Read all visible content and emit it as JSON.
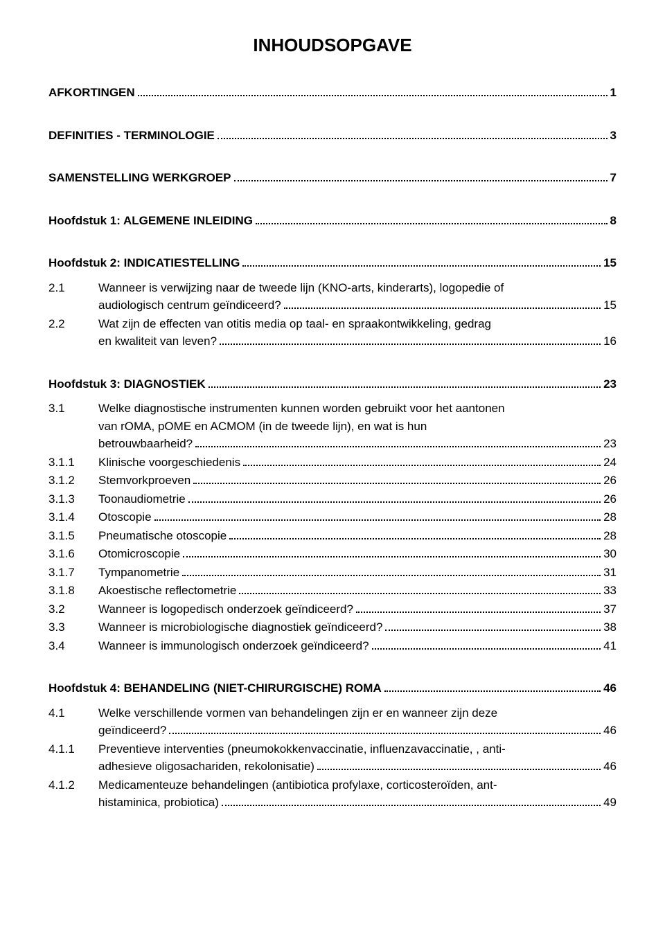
{
  "title": "INHOUDSOPGAVE",
  "colors": {
    "text": "#000000",
    "background": "#ffffff"
  },
  "typography": {
    "font_family": "Arial",
    "title_fontsize": 26,
    "body_fontsize": 17,
    "bold_weight": 700
  },
  "entries": [
    {
      "num": "",
      "label": "AFKORTINGEN",
      "page": "1",
      "bold": true,
      "wrap": false,
      "gap_after": "lg"
    },
    {
      "num": "",
      "label": "DEFINITIES - TERMINOLOGIE",
      "page": "3",
      "bold": true,
      "wrap": false,
      "gap_after": "lg"
    },
    {
      "num": "",
      "label": "SAMENSTELLING WERKGROEP",
      "page": "7",
      "bold": true,
      "wrap": false,
      "gap_after": "lg"
    },
    {
      "num": "",
      "label": "Hoofdstuk 1: ALGEMENE INLEIDING",
      "page": "8",
      "bold": true,
      "wrap": false,
      "gap_after": "lg"
    },
    {
      "num": "",
      "label": "Hoofdstuk 2: INDICATIESTELLING",
      "page": "15",
      "bold": true,
      "wrap": false,
      "gap_after": "sm"
    },
    {
      "num": "2.1",
      "label_lines": [
        "Wanneer is verwijzing naar de tweede lijn (KNO-arts, kinderarts), logopedie of",
        "audiologisch centrum geïndiceerd?"
      ],
      "page": "15",
      "bold": false,
      "gap_after": ""
    },
    {
      "num": "2.2",
      "label_lines": [
        "Wat zijn de effecten van otitis media op taal- en spraakontwikkeling, gedrag",
        "en kwaliteit van leven?"
      ],
      "page": "16",
      "bold": false,
      "gap_after": "lg"
    },
    {
      "num": "",
      "label": "Hoofdstuk 3: DIAGNOSTIEK",
      "page": "23",
      "bold": true,
      "wrap": false,
      "gap_after": "sm"
    },
    {
      "num": "3.1",
      "label_lines": [
        "Welke diagnostische instrumenten kunnen worden gebruikt voor het aantonen",
        "van rOMA, pOME en ACMOM (in de tweede lijn), en wat is hun",
        "betrouwbaarheid?"
      ],
      "page": "23",
      "bold": false,
      "gap_after": ""
    },
    {
      "num": "3.1.1",
      "label": "Klinische voorgeschiedenis",
      "page": "24",
      "bold": false,
      "wrap": false,
      "gap_after": ""
    },
    {
      "num": "3.1.2",
      "label": "Stemvorkproeven",
      "page": "26",
      "bold": false,
      "wrap": false,
      "gap_after": ""
    },
    {
      "num": "3.1.3",
      "label": "Toonaudiometrie",
      "page": "26",
      "bold": false,
      "wrap": false,
      "gap_after": ""
    },
    {
      "num": "3.1.4",
      "label": "Otoscopie",
      "page": "28",
      "bold": false,
      "wrap": false,
      "gap_after": ""
    },
    {
      "num": "3.1.5",
      "label": "Pneumatische otoscopie",
      "page": "28",
      "bold": false,
      "wrap": false,
      "gap_after": ""
    },
    {
      "num": "3.1.6",
      "label": "Otomicroscopie",
      "page": "30",
      "bold": false,
      "wrap": false,
      "gap_after": ""
    },
    {
      "num": "3.1.7",
      "label": "Tympanometrie",
      "page": "31",
      "bold": false,
      "wrap": false,
      "gap_after": ""
    },
    {
      "num": "3.1.8",
      "label": "Akoestische reflectometrie",
      "page": "33",
      "bold": false,
      "wrap": false,
      "gap_after": ""
    },
    {
      "num": "3.2",
      "label": " Wanneer is logopedisch onderzoek geïndiceerd?",
      "page": "37",
      "bold": false,
      "wrap": false,
      "gap_after": ""
    },
    {
      "num": "3.3",
      "label": "Wanneer is microbiologische diagnostiek geïndiceerd?",
      "page": "38",
      "bold": false,
      "wrap": false,
      "gap_after": ""
    },
    {
      "num": "3.4",
      "label": "Wanneer is immunologisch onderzoek geïndiceerd?",
      "page": "41",
      "bold": false,
      "wrap": false,
      "gap_after": "lg"
    },
    {
      "num": "",
      "label": "Hoofdstuk 4: BEHANDELING (NIET-CHIRURGISCHE) ROMA",
      "page": "46",
      "bold": true,
      "wrap": false,
      "gap_after": "sm"
    },
    {
      "num": "4.1",
      "label_lines": [
        "Welke verschillende vormen van behandelingen zijn er en wanneer zijn deze",
        "geïndiceerd?"
      ],
      "page": "46",
      "bold": false,
      "gap_after": ""
    },
    {
      "num": "4.1.1",
      "label_lines": [
        "Preventieve interventies (pneumokokkenvaccinatie, influenzavaccinatie, , anti-",
        "adhesieve oligosachariden, rekolonisatie)"
      ],
      "page": "46",
      "bold": false,
      "gap_after": ""
    },
    {
      "num": "4.1.2",
      "label_lines": [
        "Medicamenteuze behandelingen (antibiotica profylaxe, corticosteroïden, ant-",
        "histaminica, probiotica)"
      ],
      "page": "49",
      "bold": false,
      "gap_after": ""
    }
  ]
}
